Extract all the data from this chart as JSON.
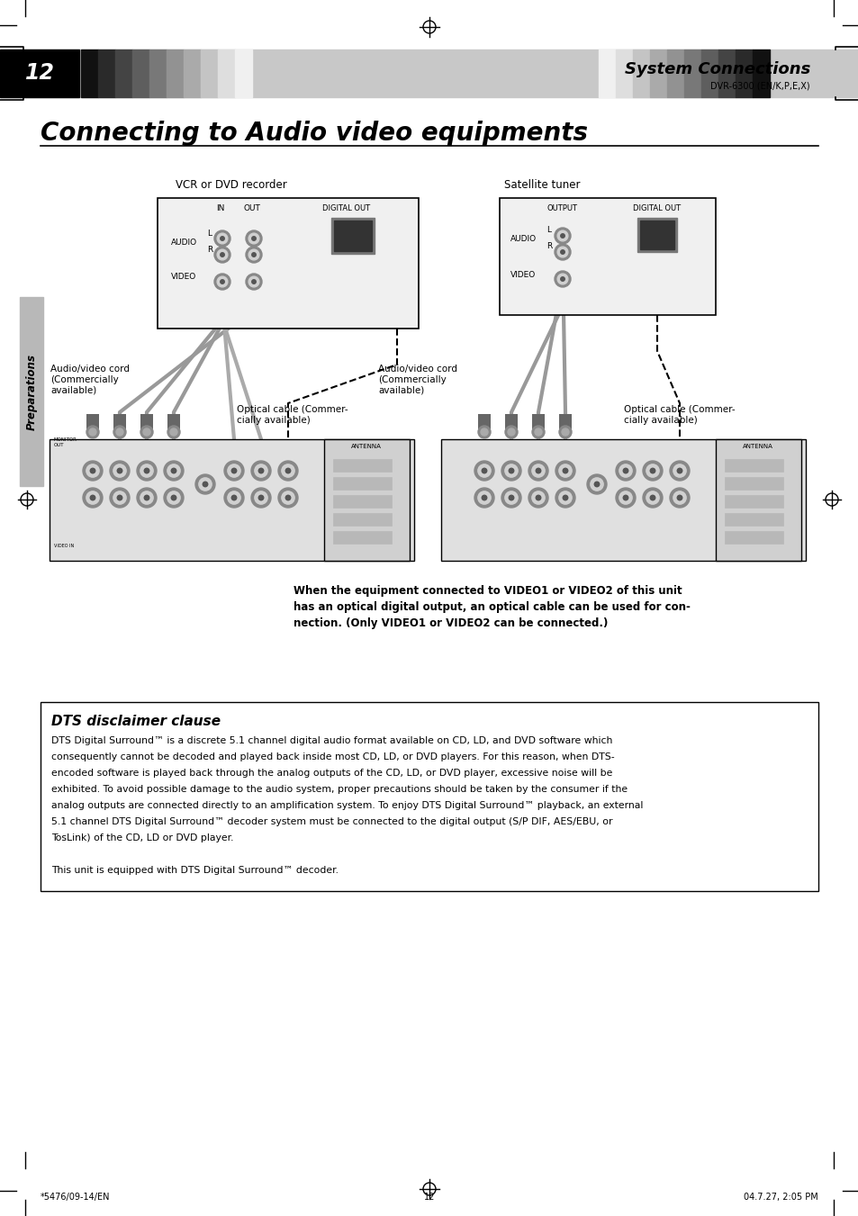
{
  "page_bg": "#ffffff",
  "header_bg": "#c8c8c8",
  "header_black_bg": "#000000",
  "page_number": "12",
  "section_title": "System Connections",
  "model": "DVR-6300 (EN/K,P,E,X)",
  "main_title": "Connecting to Audio video equipments",
  "vcr_label": "VCR or DVD recorder",
  "sat_label": "Satellite tuner",
  "audio_video_cord_label1": "Audio/video cord\n(Commercially\navailable)",
  "audio_video_cord_label2": "Audio/video cord\n(Commercially\navailable)",
  "optical_label1": "Optical cable (Commer-\ncially available)",
  "optical_label2": "Optical cable (Commer-\ncially available)",
  "note_text": "When the equipment connected to VIDEO1 or VIDEO2 of this unit\nhas an optical digital output, an optical cable can be used for con-\nnection. (Only VIDEO1 or VIDEO2 can be connected.)",
  "preparations_label": "Preparations",
  "dts_box_title": "DTS disclaimer clause",
  "dts_line1": "DTS Digital Surround™ is a discrete 5.1 channel digital audio format available on CD, LD, and DVD software which",
  "dts_line2": "consequently cannot be decoded and played back inside most CD, LD, or DVD players. For this reason, when DTS-",
  "dts_line3": "encoded software is played back through the analog outputs of the CD, LD, or DVD player, excessive noise will be",
  "dts_line4": "exhibited. To avoid possible damage to the audio system, proper precautions should be taken by the consumer if the",
  "dts_line5": "analog outputs are connected directly to an amplification system. To enjoy DTS Digital Surround™ playback, an external",
  "dts_line6": "5.1 channel DTS Digital Surround™ decoder system must be connected to the digital output (S/P DIF, AES/EBU, or",
  "dts_line7": "TosLink) of the CD, LD or DVD player.",
  "dts_line8": "This unit is equipped with DTS Digital Surround™ decoder.",
  "footer_left": "*5476/09-14/EN",
  "footer_center": "12",
  "footer_right": "04.7.27, 2:05 PM",
  "gray_bar_left": [
    "#111111",
    "#2a2a2a",
    "#444444",
    "#5e5e5e",
    "#787878",
    "#929292",
    "#aaaaaa",
    "#c4c4c4",
    "#dedede",
    "#f0f0f0"
  ],
  "gray_bar_right": [
    "#f0f0f0",
    "#dedede",
    "#c4c4c4",
    "#aaaaaa",
    "#929292",
    "#787878",
    "#5e5e5e",
    "#444444",
    "#2a2a2a",
    "#111111"
  ]
}
